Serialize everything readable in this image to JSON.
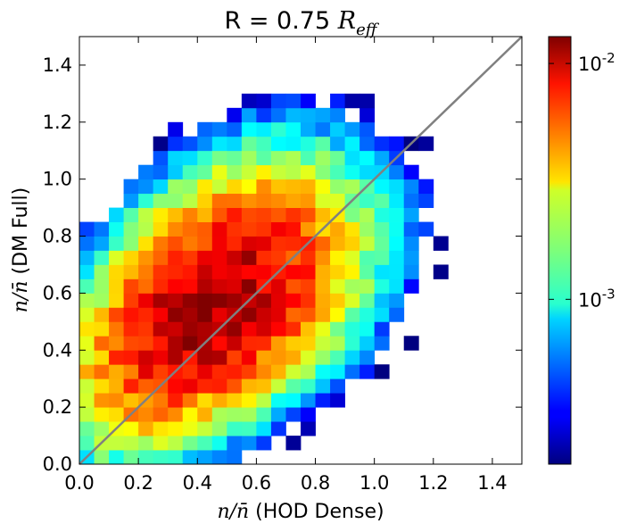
{
  "chart_data": {
    "type": "heatmap",
    "title_text": "R = 0.75 ",
    "title_math": "R",
    "title_math_sub": "eff",
    "xlabel_math": "n/n̄",
    "xlabel_text": " (HOD Dense)",
    "ylabel_math": "n/n̄",
    "ylabel_text": " (DM Full)",
    "xlim": [
      0.0,
      1.5
    ],
    "ylim": [
      0.0,
      1.5
    ],
    "xticks": [
      "0.0",
      "0.2",
      "0.4",
      "0.6",
      "0.8",
      "1.0",
      "1.2",
      "1.4"
    ],
    "yticks": [
      "0.0",
      "0.2",
      "0.4",
      "0.6",
      "0.8",
      "1.0",
      "1.2",
      "1.4"
    ],
    "bins": 30,
    "colormap": "jet",
    "colorbar_scale": "log",
    "colorbar_range": [
      0.0002,
      0.013
    ],
    "colorbar_tick_base": "10",
    "colorbar_ticks": [
      {
        "value": 0.001,
        "exponent": "-3"
      },
      {
        "value": 0.01,
        "exponent": "-2"
      }
    ],
    "reference_line": {
      "from": [
        0.0,
        0.0
      ],
      "to": [
        1.5,
        1.5
      ],
      "color": "#808080"
    },
    "peak_density": 0.012,
    "peak_location": [
      0.45,
      0.55
    ],
    "correlation_axis": "diagonal x = y"
  }
}
